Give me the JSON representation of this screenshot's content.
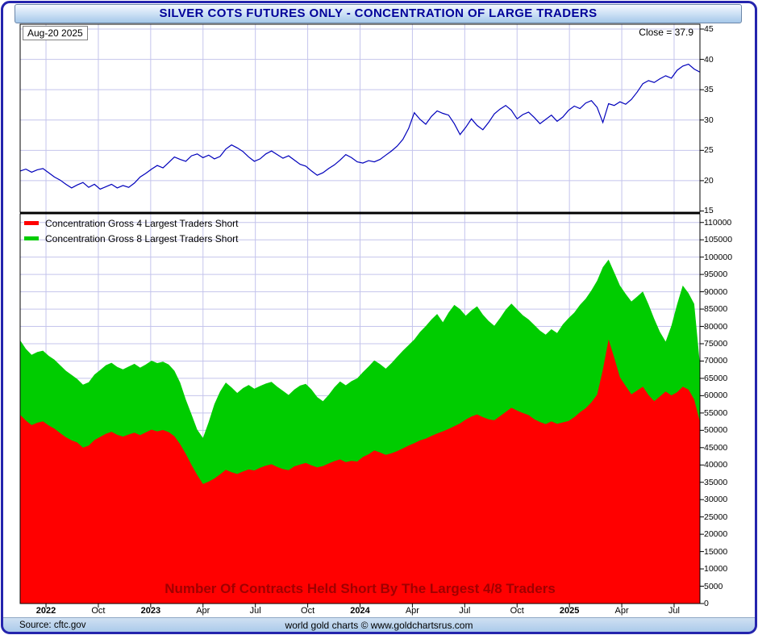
{
  "title": "SILVER COTS FUTURES ONLY - CONCENTRATION OF LARGE TRADERS",
  "top_panel": {
    "date_label": "Aug-20 2025",
    "close_label": "Close = 37.9"
  },
  "legend": [
    {
      "label": "Concentration Gross 4 Largest Traders Short",
      "color": "#ff0000"
    },
    {
      "label": "Concentration Gross 8 Largest Traders Short",
      "color": "#00cc00"
    }
  ],
  "bottom_panel": {
    "annotation": "Number Of Contracts Held Short By The Largest 4/8 Traders",
    "y_max_label": 110000,
    "y_step": 5000
  },
  "footer": {
    "source": "Source: cftc.gov",
    "credit": "world gold charts © www.goldchartsrus.com"
  },
  "colors": {
    "frame_border": "#2424ad",
    "title_text": "#000099",
    "grid": "#c4c4ec",
    "annotation_text": "#a00000"
  },
  "x_ticks": [
    {
      "label": "2022",
      "bold": true,
      "t": 0.038
    },
    {
      "label": "Oct",
      "bold": false,
      "t": 0.115
    },
    {
      "label": "2023",
      "bold": true,
      "t": 0.192
    },
    {
      "label": "Apr",
      "bold": false,
      "t": 0.269
    },
    {
      "label": "Jul",
      "bold": false,
      "t": 0.346
    },
    {
      "label": "Oct",
      "bold": false,
      "t": 0.423
    },
    {
      "label": "2024",
      "bold": true,
      "t": 0.5
    },
    {
      "label": "Apr",
      "bold": false,
      "t": 0.577
    },
    {
      "label": "Jul",
      "bold": false,
      "t": 0.654
    },
    {
      "label": "Oct",
      "bold": false,
      "t": 0.731
    },
    {
      "label": "2025",
      "bold": true,
      "t": 0.808
    },
    {
      "label": "Apr",
      "bold": false,
      "t": 0.885
    },
    {
      "label": "Jul",
      "bold": false,
      "t": 0.962
    }
  ],
  "chart_data": [
    {
      "type": "line",
      "name": "Silver Futures Close",
      "color": "#0000bb",
      "ylim": [
        15,
        45
      ],
      "y_ticks": [
        15,
        20,
        25,
        30,
        35,
        40,
        45
      ],
      "close": 37.9,
      "values": [
        21.6,
        21.9,
        21.4,
        21.8,
        22.0,
        21.3,
        20.6,
        20.1,
        19.4,
        18.8,
        19.3,
        19.7,
        18.9,
        19.4,
        18.6,
        19.0,
        19.4,
        18.8,
        19.2,
        18.9,
        19.6,
        20.6,
        21.2,
        21.9,
        22.5,
        22.1,
        23.0,
        23.9,
        23.5,
        23.2,
        24.1,
        24.4,
        23.8,
        24.2,
        23.6,
        24.0,
        25.2,
        25.9,
        25.4,
        24.8,
        23.9,
        23.2,
        23.6,
        24.4,
        24.9,
        24.3,
        23.7,
        24.1,
        23.4,
        22.7,
        22.4,
        21.6,
        20.9,
        21.3,
        22.0,
        22.6,
        23.4,
        24.3,
        23.8,
        23.1,
        22.9,
        23.3,
        23.1,
        23.5,
        24.2,
        24.9,
        25.7,
        26.8,
        28.6,
        31.2,
        30.1,
        29.3,
        30.6,
        31.5,
        31.1,
        30.8,
        29.4,
        27.6,
        28.8,
        30.2,
        29.1,
        28.4,
        29.6,
        31.0,
        31.8,
        32.4,
        31.6,
        30.2,
        30.9,
        31.3,
        30.4,
        29.4,
        30.1,
        30.8,
        29.8,
        30.5,
        31.6,
        32.3,
        31.9,
        32.8,
        33.2,
        32.1,
        29.6,
        32.7,
        32.4,
        33.0,
        32.6,
        33.4,
        34.6,
        36.0,
        36.5,
        36.2,
        36.8,
        37.3,
        36.9,
        38.2,
        38.9,
        39.2,
        38.4,
        37.9
      ]
    },
    {
      "type": "area",
      "name": "Concentration Gross 8 Largest Traders Short",
      "color": "#00cc00",
      "ylim": [
        0,
        110000
      ],
      "values": [
        76000,
        73500,
        71800,
        72600,
        73000,
        71500,
        70400,
        68800,
        67200,
        66000,
        64800,
        63200,
        63900,
        66100,
        67400,
        68800,
        69500,
        68300,
        67600,
        68400,
        69200,
        68100,
        69000,
        70100,
        69400,
        69800,
        69000,
        67200,
        63800,
        58900,
        54600,
        50200,
        47800,
        52400,
        57600,
        61200,
        63800,
        62400,
        60800,
        62200,
        63100,
        62000,
        62800,
        63500,
        64000,
        62600,
        61400,
        60200,
        61800,
        62900,
        63400,
        61800,
        59600,
        58400,
        60200,
        62400,
        64100,
        63000,
        64200,
        65000,
        66800,
        68400,
        70200,
        69100,
        67800,
        69400,
        71200,
        73000,
        74600,
        76200,
        78400,
        80100,
        82000,
        83600,
        81200,
        84000,
        86200,
        85000,
        83100,
        84600,
        85800,
        83400,
        81600,
        80200,
        82400,
        84800,
        86600,
        84900,
        83200,
        82000,
        80400,
        78800,
        77600,
        79200,
        78100,
        80600,
        82400,
        84000,
        86200,
        88000,
        90400,
        93200,
        97100,
        99300,
        95600,
        91800,
        89400,
        87200,
        88600,
        90100,
        86400,
        82200,
        78400,
        75600,
        80200,
        86400,
        91800,
        89600,
        86500,
        68900
      ]
    },
    {
      "type": "area",
      "name": "Concentration Gross 4 Largest Traders Short",
      "color": "#ff0000",
      "ylim": [
        0,
        110000
      ],
      "values": [
        54500,
        52800,
        51500,
        52200,
        52600,
        51400,
        50500,
        49200,
        48000,
        47100,
        46500,
        45000,
        45600,
        47200,
        48100,
        49000,
        49600,
        48700,
        48200,
        48800,
        49300,
        48600,
        49400,
        50200,
        49700,
        50100,
        49500,
        48300,
        46000,
        43200,
        40000,
        37100,
        34500,
        35200,
        36100,
        37300,
        38600,
        37900,
        37400,
        38100,
        38700,
        38400,
        39200,
        39800,
        40200,
        39400,
        38800,
        38500,
        39600,
        40100,
        40600,
        39900,
        39300,
        39700,
        40400,
        41100,
        41600,
        40800,
        41200,
        41000,
        42300,
        43100,
        44200,
        43600,
        42900,
        43400,
        44000,
        44800,
        45600,
        46300,
        47100,
        47600,
        48400,
        49100,
        49700,
        50400,
        51200,
        52000,
        53100,
        54000,
        54600,
        53800,
        53200,
        52900,
        54100,
        55300,
        56500,
        55700,
        55000,
        54400,
        53200,
        52400,
        51800,
        52600,
        51900,
        52300,
        52700,
        53800,
        55200,
        56400,
        58100,
        60300,
        67500,
        76200,
        71000,
        65300,
        62800,
        60400,
        61500,
        62600,
        60200,
        58400,
        59800,
        61200,
        60100,
        61000,
        62600,
        61800,
        58900,
        52400
      ]
    }
  ]
}
